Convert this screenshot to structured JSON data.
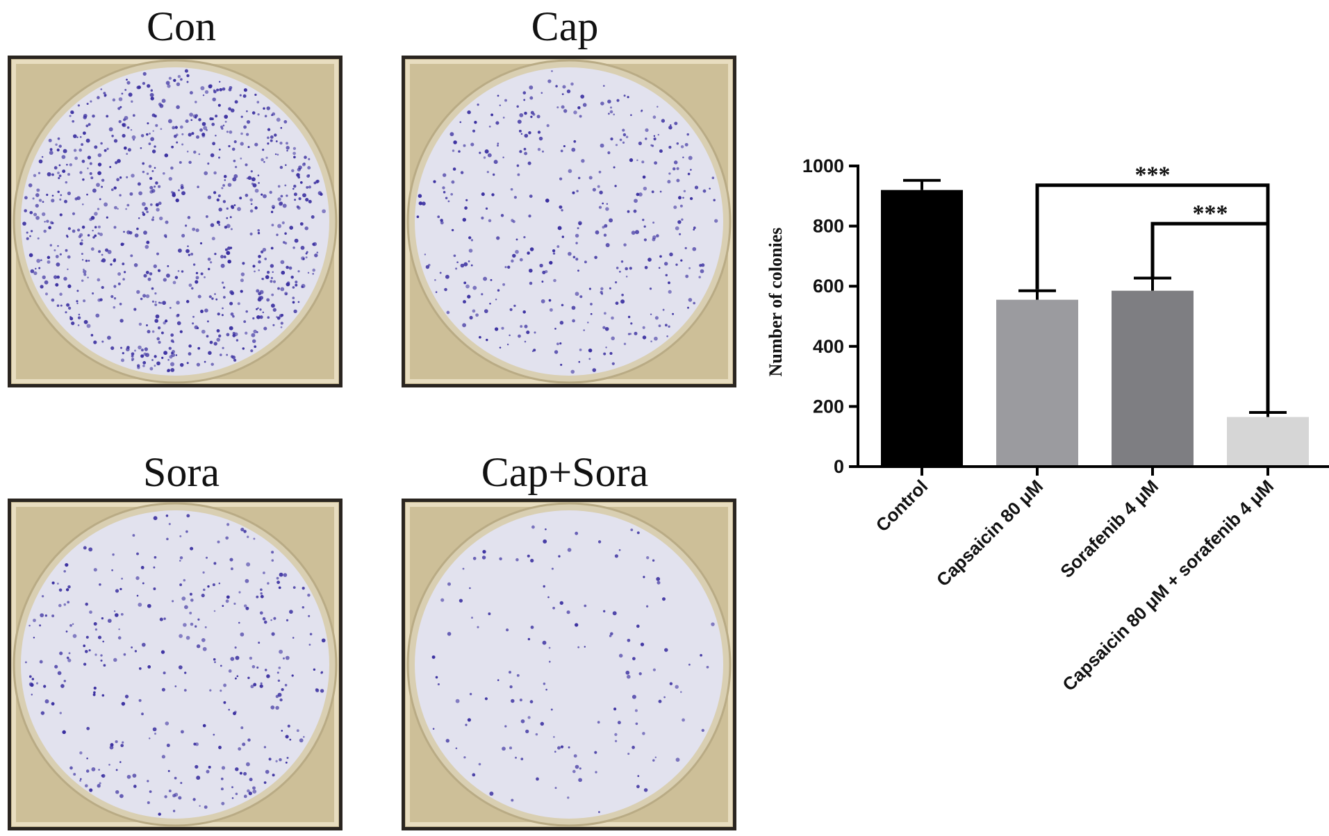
{
  "panels": [
    {
      "title": "Con",
      "colony_density": 0.95
    },
    {
      "title": "Cap",
      "colony_density": 0.45
    },
    {
      "title": "Sora",
      "colony_density": 0.38
    },
    {
      "title": "Cap+Sora",
      "colony_density": 0.16
    }
  ],
  "colors": {
    "plate_frame": "#2a2520",
    "plate_background": "#cdbf98",
    "agar": "#e2e2ee",
    "colony": "#3a2fa0"
  },
  "chart_data": {
    "type": "bar",
    "title": "",
    "xlabel": "",
    "ylabel": "Number of colonies",
    "ylim": [
      0,
      1000
    ],
    "yticks": [
      "0",
      "200",
      "400",
      "600",
      "800",
      "1000"
    ],
    "categories": [
      "Control",
      "Capsaicin 80 μM",
      "Sorafenib 4 μM",
      "Capsaicin 80 μM + sorafenib 4 μM"
    ],
    "values": [
      920,
      555,
      585,
      165
    ],
    "errors": [
      32,
      30,
      42,
      15
    ],
    "colors": [
      "#000000",
      "#9b9b9f",
      "#7e7e82",
      "#d6d6d6"
    ],
    "grid": false,
    "significance": [
      {
        "from": 1,
        "to": 3,
        "label": "***"
      },
      {
        "from": 2,
        "to": 3,
        "label": "***"
      }
    ]
  }
}
